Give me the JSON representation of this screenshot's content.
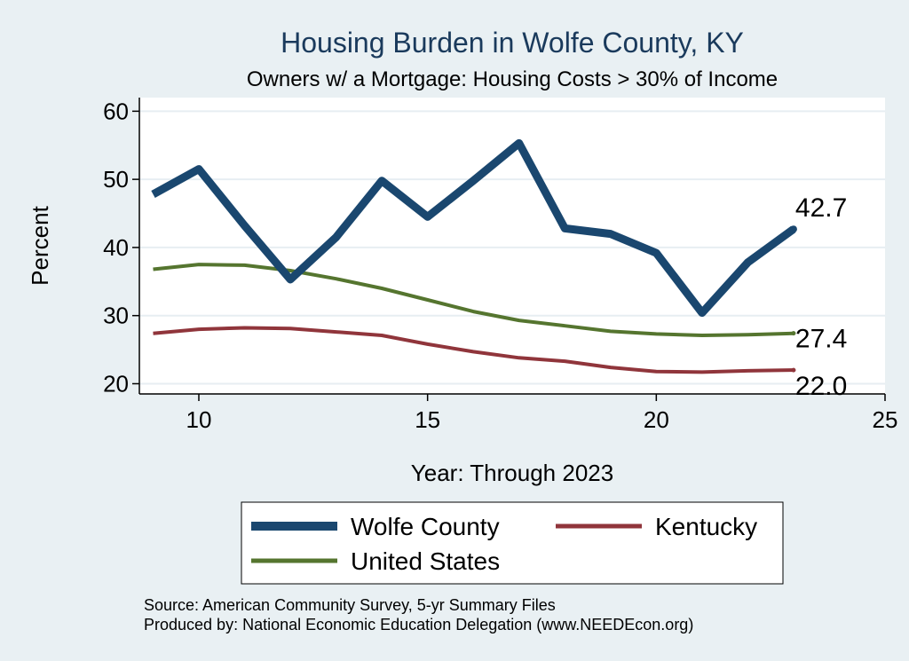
{
  "chart_data": {
    "type": "line",
    "title": "Housing Burden in Wolfe County, KY",
    "subtitle": "Owners w/ a Mortgage: Housing Costs > 30% of Income",
    "xlabel": "Year: Through 2023",
    "ylabel": "Percent",
    "xlim": [
      8.7,
      25
    ],
    "ylim": [
      18.5,
      62
    ],
    "xticks": [
      10,
      15,
      20,
      25
    ],
    "yticks": [
      20,
      30,
      40,
      50,
      60
    ],
    "grid": "horizontal",
    "legend_position": "bottom",
    "x": [
      9,
      10,
      11,
      12,
      13,
      14,
      15,
      16,
      17,
      18,
      19,
      20,
      21,
      22,
      23
    ],
    "series": [
      {
        "name": "Wolfe County",
        "color": "#1a476f",
        "values": [
          47.8,
          51.5,
          43.2,
          35.3,
          41.5,
          49.8,
          44.5,
          49.8,
          55.3,
          42.8,
          42.0,
          39.2,
          30.4,
          37.8,
          42.7
        ],
        "end_label": "42.7"
      },
      {
        "name": "Kentucky",
        "color": "#90353b",
        "values": [
          27.4,
          28.0,
          28.2,
          28.1,
          27.6,
          27.1,
          25.8,
          24.7,
          23.8,
          23.3,
          22.4,
          21.8,
          21.7,
          21.9,
          22.0
        ],
        "end_label": "22.0"
      },
      {
        "name": "United States",
        "color": "#55752f",
        "values": [
          36.8,
          37.5,
          37.4,
          36.6,
          35.4,
          34.0,
          32.3,
          30.6,
          29.3,
          28.5,
          27.7,
          27.3,
          27.1,
          27.2,
          27.4
        ],
        "end_label": "27.4"
      }
    ]
  },
  "source_lines": [
    "Source: American Community Survey, 5-yr Summary Files",
    "Produced by: National Economic Education Delegation (www.NEEDEcon.org)"
  ]
}
